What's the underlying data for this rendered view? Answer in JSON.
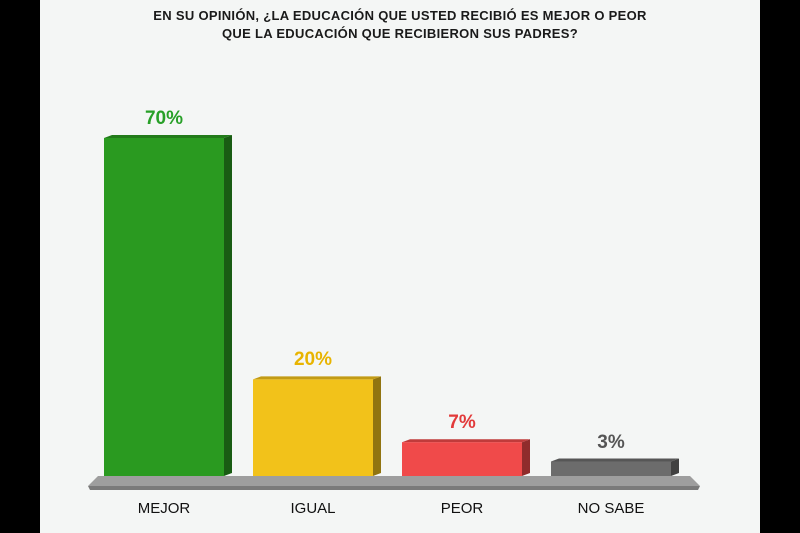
{
  "chart_data": {
    "type": "bar",
    "title_lines": [
      "EN SU OPINIÓN, ¿LA EDUCACIÓN QUE USTED RECIBIÓ ES MEJOR O PEOR",
      "QUE LA EDUCACIÓN QUE RECIBIERON SUS PADRES?"
    ],
    "categories": [
      "MEJOR",
      "IGUAL",
      "PEOR",
      "NO SABE"
    ],
    "values": [
      70,
      20,
      7,
      3
    ],
    "value_labels": [
      "70%",
      "20%",
      "7%",
      "3%"
    ],
    "colors": [
      "#2a9a20",
      "#f2c21a",
      "#f04a4a",
      "#6c6c6c"
    ],
    "label_colors": [
      "#28a028",
      "#e8b400",
      "#e23a3a",
      "#555555"
    ],
    "ylim": [
      0,
      70
    ],
    "xlabel": "",
    "ylabel": "",
    "grid": false,
    "legend": "none"
  }
}
